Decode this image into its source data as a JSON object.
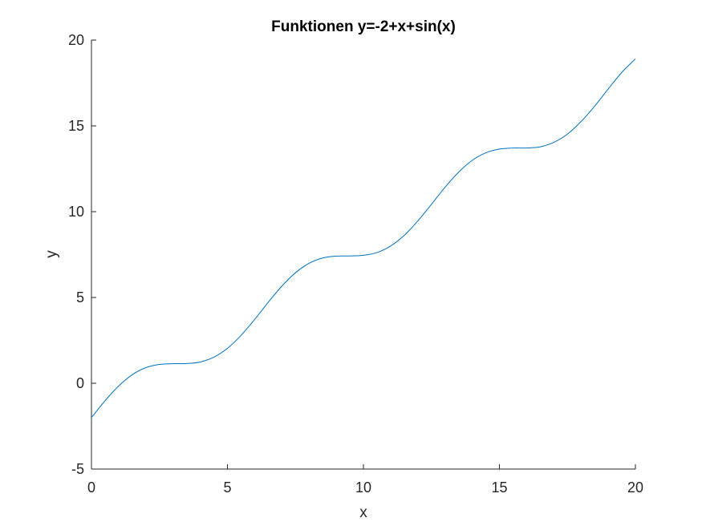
{
  "chart_data": {
    "type": "line",
    "title": "Funktionen y=-2+x+sin(x)",
    "xlabel": "x",
    "ylabel": "y",
    "xlim": [
      0,
      20
    ],
    "ylim": [
      -5,
      20
    ],
    "xticks": [
      0,
      5,
      10,
      15,
      20
    ],
    "yticks": [
      -5,
      0,
      5,
      10,
      15,
      20
    ],
    "xtick_labels": [
      "0",
      "5",
      "10",
      "15",
      "20"
    ],
    "ytick_labels": [
      "-5",
      "0",
      "5",
      "10",
      "15",
      "20"
    ],
    "grid": false,
    "legend": "none",
    "series": [
      {
        "color": "#0072BD",
        "x": [
          0,
          0.5,
          1,
          1.5,
          2,
          2.5,
          3,
          3.5,
          4,
          4.5,
          5,
          5.5,
          6,
          6.5,
          7,
          7.5,
          8,
          8.5,
          9,
          9.5,
          10,
          10.5,
          11,
          11.5,
          12,
          12.5,
          13,
          13.5,
          14,
          14.5,
          15,
          15.5,
          16,
          16.5,
          17,
          17.5,
          18,
          18.5,
          19,
          19.5,
          20
        ],
        "values": [
          -2.0,
          -1.02,
          -0.16,
          0.5,
          0.91,
          1.1,
          1.14,
          1.15,
          1.24,
          1.52,
          2.04,
          2.79,
          3.72,
          4.72,
          5.66,
          6.44,
          6.99,
          7.3,
          7.41,
          7.42,
          7.46,
          7.62,
          8.0,
          8.62,
          9.46,
          10.43,
          11.42,
          12.3,
          12.99,
          13.43,
          13.65,
          13.71,
          13.71,
          13.78,
          14.04,
          14.52,
          15.25,
          16.15,
          17.15,
          18.12,
          18.91
        ]
      }
    ]
  }
}
